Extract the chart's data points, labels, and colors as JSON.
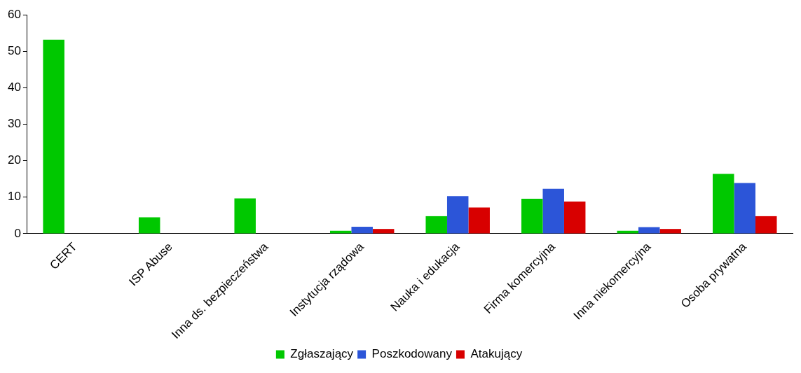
{
  "chart_data": {
    "type": "bar",
    "categories": [
      "CERT",
      "ISP Abuse",
      "Inna ds. bezpieczeństwa",
      "Instytucja rządowa",
      "Nauka i edukacja",
      "Firma komercyjna",
      "Inna niekomercyjna",
      "Osoba prywatna"
    ],
    "series": [
      {
        "name": "Zgłaszający",
        "color": "#00c800",
        "values": [
          53.2,
          4.5,
          9.7,
          0.8,
          4.8,
          9.6,
          0.8,
          16.4
        ]
      },
      {
        "name": "Poszkodowany",
        "color": "#2c55d8",
        "values": [
          null,
          null,
          null,
          1.9,
          10.3,
          12.3,
          1.8,
          13.9
        ]
      },
      {
        "name": "Atakujący",
        "color": "#d80000",
        "values": [
          null,
          null,
          null,
          1.3,
          7.2,
          8.8,
          1.3,
          4.8
        ]
      }
    ],
    "ylim": [
      0,
      60
    ],
    "yticks": [
      0,
      10,
      20,
      30,
      40,
      50,
      60
    ],
    "grid": false,
    "legend": "bottom"
  }
}
